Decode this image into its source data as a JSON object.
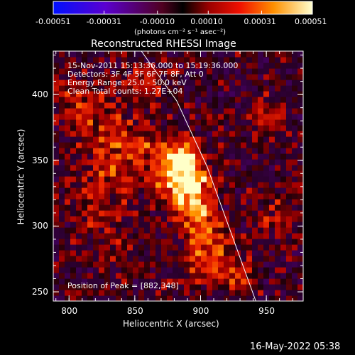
{
  "colorbar": {
    "tick_labels": [
      "-0.00051",
      "-0.00031",
      "-0.00010",
      "0.00010",
      "0.00031",
      "0.00051"
    ],
    "units": "(photons cm⁻² s⁻¹ asec⁻²)"
  },
  "plot": {
    "title": "Reconstructed RHESSI Image",
    "info_lines": [
      "15-Nov-2011 15:13:36.000 to 15:19:36.000",
      "Detectors: 3F 4F 5F 6F 7F 8F, Att 0",
      "Energy Range: 25.0 - 50.0 keV",
      "Clean     Total counts: 1.27E+04"
    ],
    "peak_label": "Position of Peak = [882,348]"
  },
  "footer": {
    "timestamp": "16-May-2022 05:38"
  },
  "colors": {
    "background": "#000000",
    "axes": "#ffffff"
  },
  "chart_data": {
    "type": "heatmap",
    "title": "Reconstructed RHESSI Image",
    "xlabel": "Heliocentric X (arcsec)",
    "ylabel": "Heliocentric Y (arcsec)",
    "xlim": [
      788,
      978
    ],
    "ylim": [
      243,
      433
    ],
    "xticks": [
      800,
      850,
      900,
      950
    ],
    "yticks": [
      250,
      300,
      350,
      400
    ],
    "colorbar_range": [
      -0.00051,
      0.00051
    ],
    "colorbar_ticks": [
      -0.00051,
      -0.00031,
      -0.0001,
      0.0001,
      0.00031,
      0.00051
    ],
    "peak": [
      882,
      348
    ],
    "limb_line": [
      [
        855,
        433
      ],
      [
        882,
        395
      ],
      [
        905,
        345
      ],
      [
        922,
        298
      ],
      [
        942,
        243
      ]
    ]
  }
}
